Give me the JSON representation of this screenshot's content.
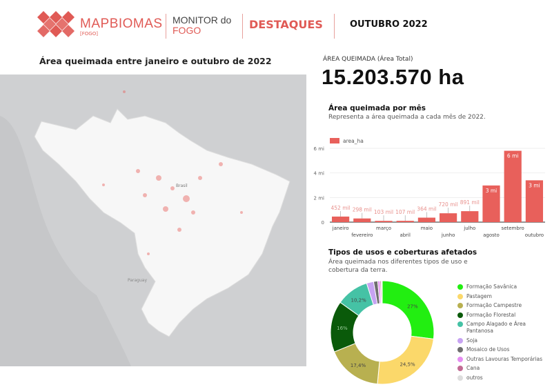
{
  "header": {
    "brand_light": "MAP",
    "brand_bold": "BIOMAS",
    "brand_sub": "[FOGO]",
    "monitor_line1": "MONITOR do",
    "monitor_line2": "FOGO",
    "section": "DESTAQUES",
    "period": "OUTUBRO 2022"
  },
  "map": {
    "title": "Área queimada entre janeiro e outubro de 2022",
    "label_brasil": "Brasil",
    "label_paraguay": "Paraguay"
  },
  "total": {
    "label": "ÁREA QUEIMADA (Área Total)",
    "value": "15.203.570 ha"
  },
  "colors": {
    "accent": "#e05a55",
    "bar": "#e8605b"
  },
  "chart_data": [
    {
      "type": "bar",
      "title": "Área queimada por mês",
      "subtitle": "Representa a área queimada a cada mês de 2022.",
      "legend": "area_ha",
      "ylim": [
        0,
        6000000
      ],
      "yticks": [
        "0",
        "2 mi",
        "4 mi",
        "6 mi"
      ],
      "ytick_values": [
        0,
        2000000,
        4000000,
        6000000
      ],
      "categories": [
        "janeiro",
        "fevereiro",
        "março",
        "abril",
        "maio",
        "junho",
        "julho",
        "agosto",
        "setembro",
        "outubro"
      ],
      "values": [
        452000,
        298000,
        103000,
        107000,
        364000,
        720000,
        891000,
        2980000,
        5800000,
        3400000
      ],
      "labels": [
        "452 mil",
        "298 mil",
        "103 mil",
        "107 mil",
        "364 mil",
        "720 mil",
        "891 mil",
        "3 mi",
        "6 mi",
        "3 mi"
      ]
    },
    {
      "type": "pie",
      "title": "Tipos de usos e coberturas afetados",
      "subtitle": "Área queimada nos diferentes tipos de uso e cobertura da terra.",
      "slices": [
        {
          "name": "Formação Savânica",
          "value": 27,
          "label": "27%",
          "color": "#22ee11"
        },
        {
          "name": "Pastagem",
          "value": 24.5,
          "label": "24,5%",
          "color": "#fbd86a"
        },
        {
          "name": "Formação Campestre",
          "value": 17.4,
          "label": "17,4%",
          "color": "#b8b050"
        },
        {
          "name": "Formação Florestal",
          "value": 16,
          "label": "16%",
          "color": "#0a5a0a"
        },
        {
          "name": "Campo Alagado e Área Pantanosa",
          "value": 10.2,
          "label": "10,2%",
          "color": "#45c2a5"
        },
        {
          "name": "Soja",
          "value": 2.2,
          "label": "",
          "color": "#c7a3f2"
        },
        {
          "name": "Mosaico de Usos",
          "value": 1.3,
          "label": "",
          "color": "#6e6e6e"
        },
        {
          "name": "Outras Lavouras Temporárias",
          "value": 0.7,
          "label": "",
          "color": "#e58df2"
        },
        {
          "name": "Cana",
          "value": 0.4,
          "label": "",
          "color": "#c26b94"
        },
        {
          "name": "outros",
          "value": 0.3,
          "label": "",
          "color": "#dddddd"
        }
      ]
    }
  ]
}
